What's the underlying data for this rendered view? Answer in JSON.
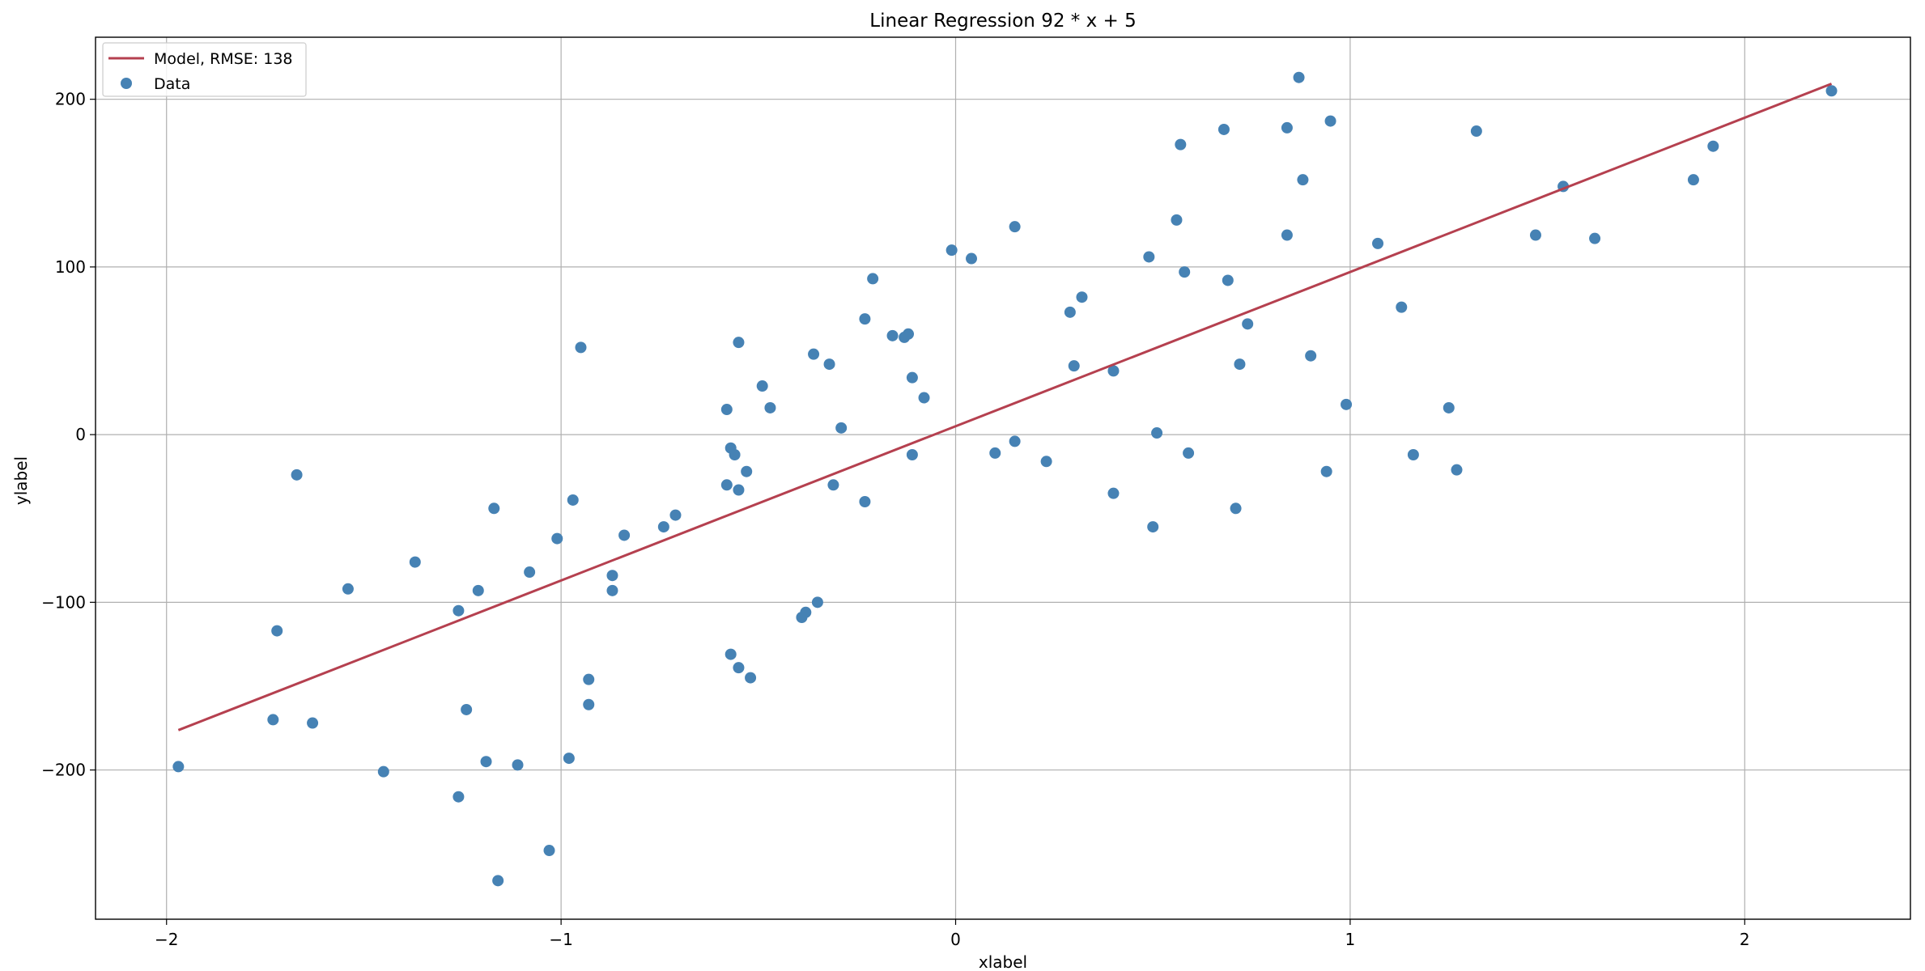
{
  "chart_data": {
    "type": "scatter",
    "title": "Linear Regression 92 * x + 5",
    "xlabel": "xlabel",
    "ylabel": "ylabel",
    "xlim": [
      -2.18,
      2.42
    ],
    "ylim": [
      -289,
      237
    ],
    "x_ticks": [
      -2,
      -1,
      0,
      1,
      2
    ],
    "y_ticks": [
      -200,
      -100,
      0,
      100,
      200
    ],
    "x_tick_labels": [
      "−2",
      "−1",
      "0",
      "1",
      "2"
    ],
    "y_tick_labels": [
      "−200",
      "−100",
      "0",
      "100",
      "200"
    ],
    "grid": true,
    "legend_position": "top-left",
    "model": {
      "name": "Model, RMSE: 138",
      "slope": 92,
      "intercept": 5,
      "x_range": [
        -1.97,
        2.22
      ],
      "color": "#b5404f"
    },
    "series": [
      {
        "name": "Data",
        "color": "#4682b4",
        "points": [
          [
            -1.97,
            -198
          ],
          [
            -1.73,
            -170
          ],
          [
            -1.72,
            -117
          ],
          [
            -1.67,
            -24
          ],
          [
            -1.63,
            -172
          ],
          [
            -1.54,
            -92
          ],
          [
            -1.45,
            -201
          ],
          [
            -1.37,
            -76
          ],
          [
            -1.26,
            -105
          ],
          [
            -1.26,
            -216
          ],
          [
            -1.24,
            -164
          ],
          [
            -1.21,
            -93
          ],
          [
            -1.19,
            -195
          ],
          [
            -1.17,
            -44
          ],
          [
            -1.16,
            -266
          ],
          [
            -1.11,
            -197
          ],
          [
            -1.08,
            -82
          ],
          [
            -1.03,
            -248
          ],
          [
            -1.01,
            -62
          ],
          [
            -0.98,
            -193
          ],
          [
            -0.97,
            -39
          ],
          [
            -0.95,
            52
          ],
          [
            -0.93,
            -146
          ],
          [
            -0.93,
            -161
          ],
          [
            -0.87,
            -84
          ],
          [
            -0.87,
            -93
          ],
          [
            -0.84,
            -60
          ],
          [
            -0.74,
            -55
          ],
          [
            -0.71,
            -48
          ],
          [
            -0.58,
            15
          ],
          [
            -0.58,
            -30
          ],
          [
            -0.57,
            -8
          ],
          [
            -0.57,
            -131
          ],
          [
            -0.56,
            -12
          ],
          [
            -0.55,
            55
          ],
          [
            -0.55,
            -33
          ],
          [
            -0.55,
            -139
          ],
          [
            -0.53,
            -22
          ],
          [
            -0.52,
            -145
          ],
          [
            -0.49,
            29
          ],
          [
            -0.47,
            16
          ],
          [
            -0.39,
            -109
          ],
          [
            -0.38,
            -106
          ],
          [
            -0.36,
            48
          ],
          [
            -0.35,
            -100
          ],
          [
            -0.32,
            42
          ],
          [
            -0.31,
            -30
          ],
          [
            -0.29,
            4
          ],
          [
            -0.23,
            69
          ],
          [
            -0.23,
            -40
          ],
          [
            -0.21,
            93
          ],
          [
            -0.16,
            59
          ],
          [
            -0.13,
            58
          ],
          [
            -0.12,
            60
          ],
          [
            -0.11,
            34
          ],
          [
            -0.11,
            -12
          ],
          [
            -0.08,
            22
          ],
          [
            -0.01,
            110
          ],
          [
            0.04,
            105
          ],
          [
            0.1,
            -11
          ],
          [
            0.15,
            124
          ],
          [
            0.15,
            -4
          ],
          [
            0.23,
            -16
          ],
          [
            0.29,
            73
          ],
          [
            0.3,
            41
          ],
          [
            0.32,
            82
          ],
          [
            0.4,
            38
          ],
          [
            0.4,
            -35
          ],
          [
            0.49,
            106
          ],
          [
            0.5,
            -55
          ],
          [
            0.51,
            1
          ],
          [
            0.56,
            128
          ],
          [
            0.57,
            173
          ],
          [
            0.58,
            97
          ],
          [
            0.59,
            -11
          ],
          [
            0.68,
            182
          ],
          [
            0.69,
            92
          ],
          [
            0.71,
            -44
          ],
          [
            0.72,
            42
          ],
          [
            0.74,
            66
          ],
          [
            0.84,
            183
          ],
          [
            0.84,
            119
          ],
          [
            0.87,
            213
          ],
          [
            0.88,
            152
          ],
          [
            0.9,
            47
          ],
          [
            0.94,
            -22
          ],
          [
            0.95,
            187
          ],
          [
            0.99,
            18
          ],
          [
            1.07,
            114
          ],
          [
            1.13,
            76
          ],
          [
            1.16,
            -12
          ],
          [
            1.25,
            16
          ],
          [
            1.27,
            -21
          ],
          [
            1.32,
            181
          ],
          [
            1.47,
            119
          ],
          [
            1.54,
            148
          ],
          [
            1.62,
            117
          ],
          [
            1.87,
            152
          ],
          [
            1.92,
            172
          ],
          [
            2.22,
            205
          ]
        ]
      }
    ]
  }
}
